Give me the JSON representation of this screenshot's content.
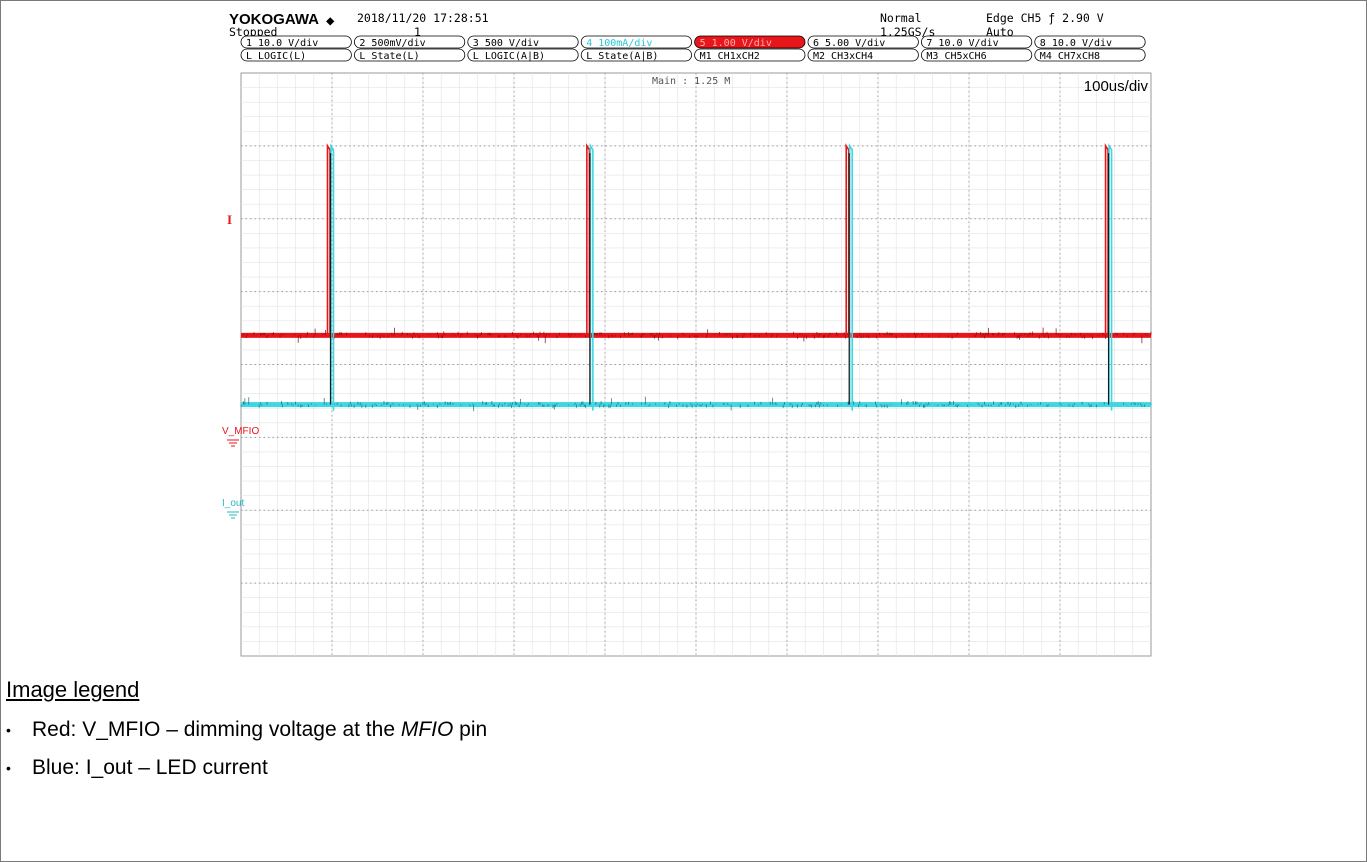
{
  "header": {
    "brand": "YOKOGAWA",
    "brand_mark": "◆",
    "datetime": "2018/11/20 17:28:51",
    "status": "Stopped",
    "acq_count": "1",
    "mode": "Normal",
    "sample_rate": "1.25GS/s",
    "trigger": "Edge CH5 ƒ 2.90 V",
    "trigger_mode": "Auto"
  },
  "channel_row1": [
    "1 10.0 V/div",
    "2 500mV/div",
    "3 500 V/div",
    "4 100mA/div",
    "5 1.00 V/div",
    "6 5.00 V/div",
    "7 10.0 V/div",
    "8 10.0 V/div"
  ],
  "channel_row2": [
    "L LOGIC(L)",
    "L State(L)",
    "L LOGIC(A|B)",
    "L State(A|B)",
    "M1 CH1xCH2",
    "M2 CH3xCH4",
    "M3 CH5xCH6",
    "M4 CH7xCH8"
  ],
  "chart_data": {
    "type": "line",
    "title": "",
    "main_label": "Main : 1.25 M",
    "timebase": "100us/div",
    "x_divisions": 10,
    "y_divisions": 8,
    "xlabel": "",
    "ylabel": "",
    "grid": true,
    "trace_markers": [
      "I",
      "V_MFIO",
      "I_out"
    ],
    "series": [
      {
        "name": "V_MFIO",
        "color": "#e8161b",
        "baseline_div": 4.4,
        "pulse_top_div": 7.0,
        "pulse_times_div": [
          1.0,
          3.85,
          6.7,
          9.55
        ],
        "noise_div": 0.05
      },
      {
        "name": "I_out",
        "color": "#3ed7e3",
        "baseline_div": 3.45,
        "pulse_top_div": 7.0,
        "pulse_times_div": [
          1.0,
          3.85,
          6.7,
          9.55
        ],
        "noise_div": 0.05
      }
    ],
    "spike_color": "#1a1a1a"
  },
  "legend": {
    "title": "Image legend",
    "items": [
      {
        "bullet": "•",
        "text_a": "Red: V_MFIO – dimming voltage at the ",
        "pin": "MFIO",
        "text_b": " pin"
      },
      {
        "bullet": "•",
        "text_a": "Blue: I_out – LED current",
        "pin": "",
        "text_b": ""
      }
    ]
  }
}
